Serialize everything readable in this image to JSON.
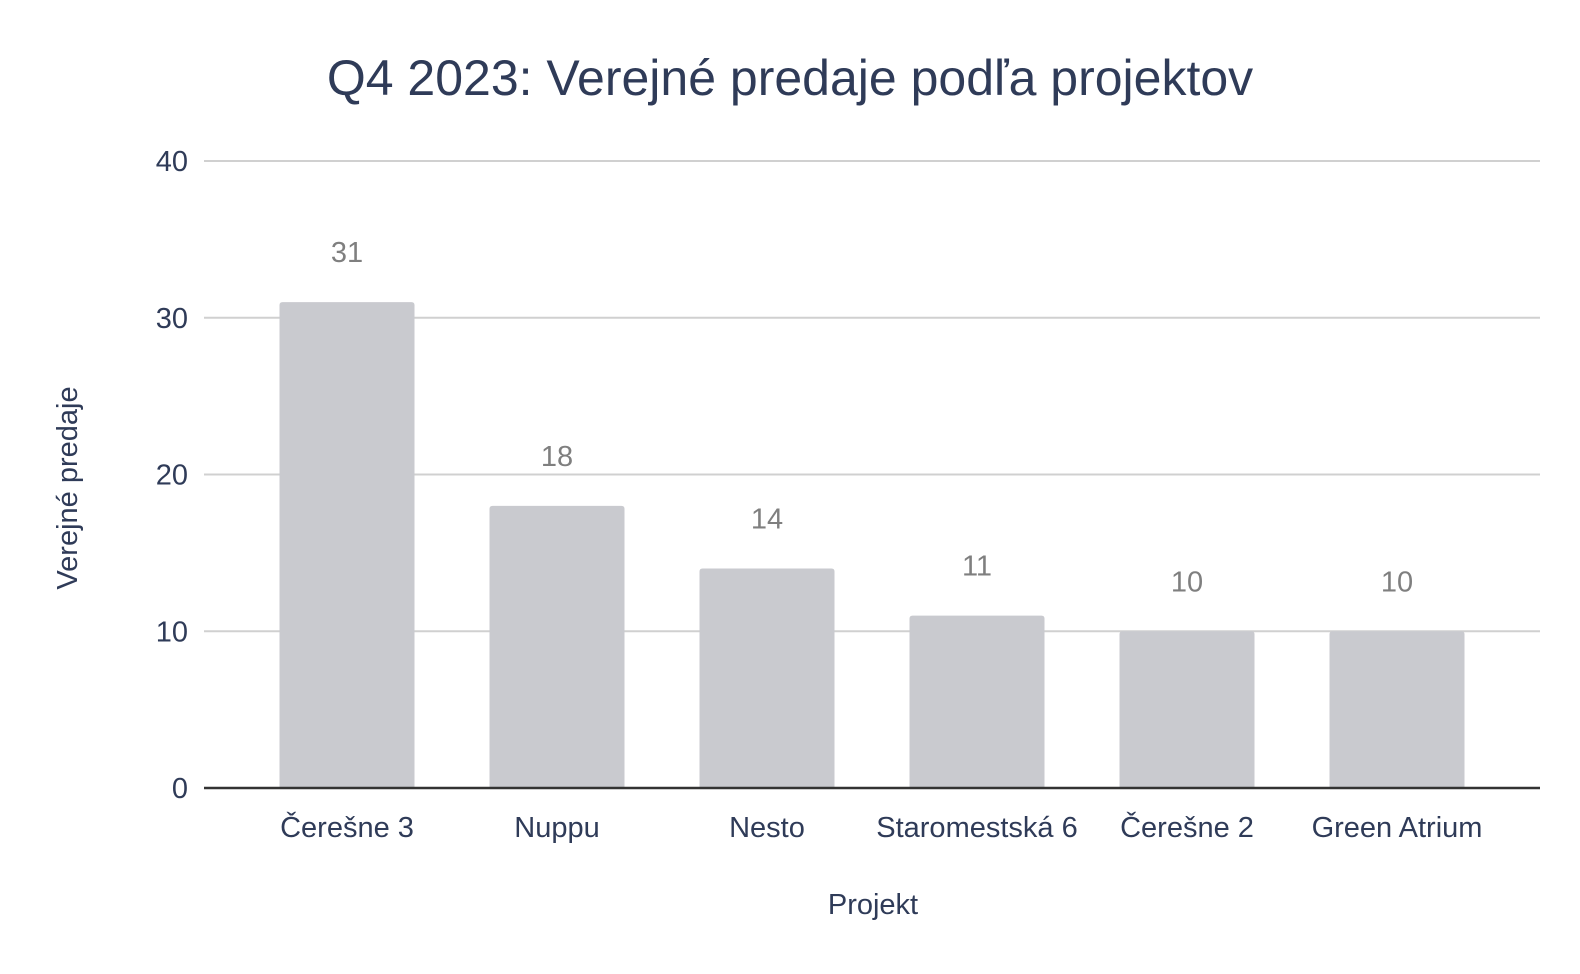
{
  "chart_data": {
    "type": "bar",
    "title": "Q4 2023: Verejné predaje podľa projektov",
    "xlabel": "Projekt",
    "ylabel": "Verejné predaje",
    "categories": [
      "Čerešne 3",
      "Nuppu",
      "Nesto",
      "Staromestská 6",
      "Čerešne 2",
      "Green Atrium"
    ],
    "values": [
      31,
      18,
      14,
      11,
      10,
      10
    ],
    "data_labels": [
      "31",
      "18",
      "14",
      "11",
      "10",
      "10"
    ],
    "ylim": [
      0,
      40
    ],
    "yticks": [
      0,
      10,
      20,
      30,
      40
    ],
    "ytick_labels": [
      "0",
      "10",
      "20",
      "30",
      "40"
    ],
    "grid": true,
    "legend": "none",
    "colors": {
      "bar": "#c9cacf",
      "grid": "#d0d0d0",
      "axis": "#333333",
      "text": "#2f3b58",
      "data_label": "#7f7f7f"
    }
  }
}
